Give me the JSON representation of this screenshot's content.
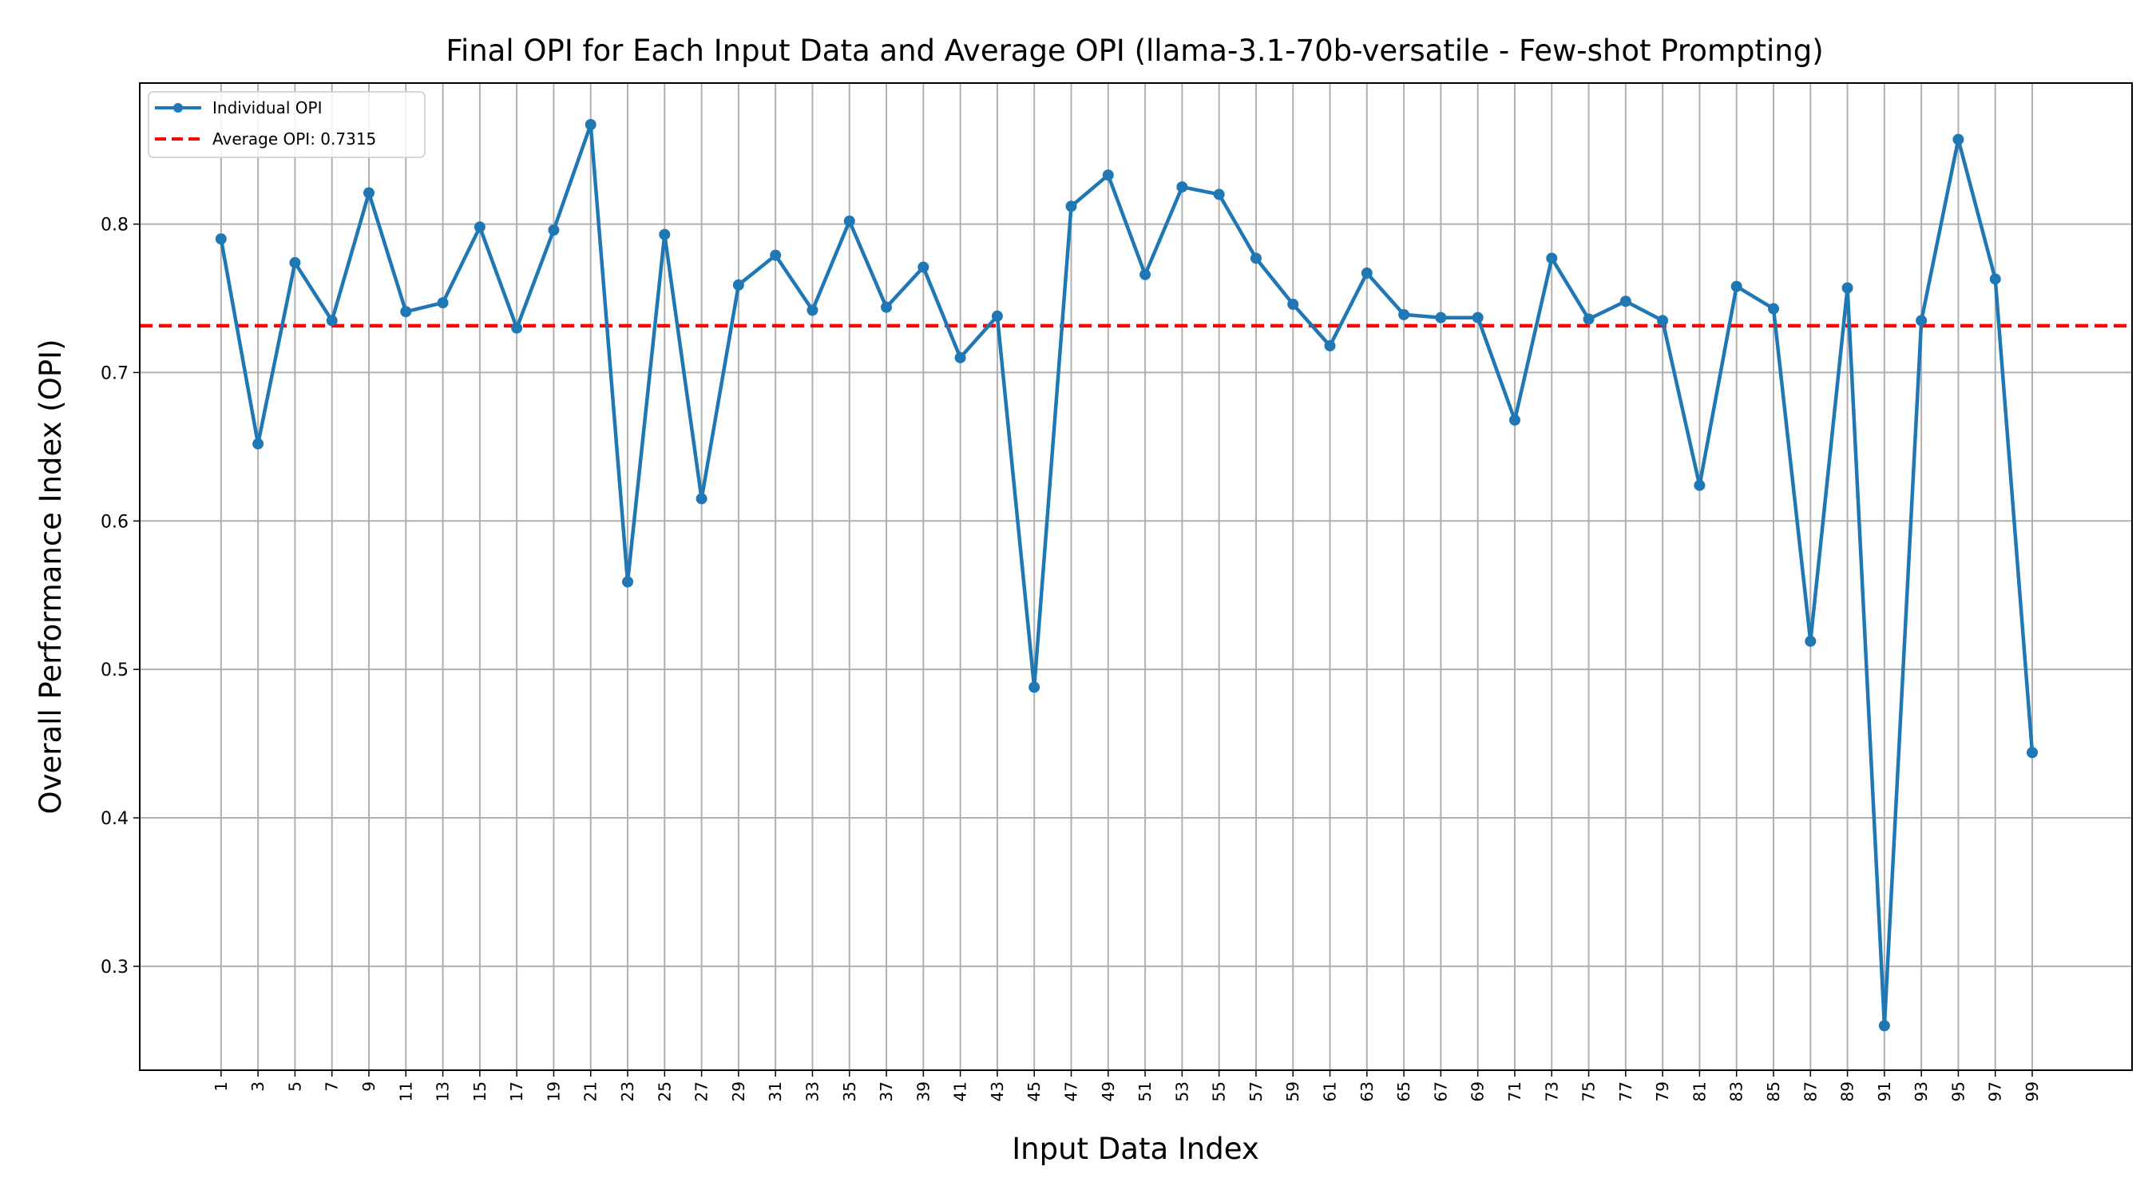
{
  "chart_data": {
    "type": "line",
    "title": "Final OPI for Each Input Data and Average OPI (llama-3.1-70b-versatile - Few-shot Prompting)",
    "xlabel": "Input Data Index",
    "ylabel": "Overall Performance Index (OPI)",
    "ylim": [
      0.23,
      0.895
    ],
    "xlim": [
      -3.4,
      104.4
    ],
    "grid": true,
    "legend_position": "top-left",
    "x": [
      1,
      3,
      5,
      7,
      9,
      11,
      13,
      15,
      17,
      19,
      21,
      23,
      25,
      27,
      29,
      31,
      33,
      35,
      37,
      39,
      41,
      43,
      45,
      47,
      49,
      51,
      53,
      55,
      57,
      59,
      61,
      63,
      65,
      67,
      69,
      71,
      73,
      75,
      77,
      79,
      81,
      83,
      85,
      87,
      89,
      91,
      93,
      95,
      97,
      99
    ],
    "x_tick_labels": [
      "1",
      "3",
      "5",
      "7",
      "9",
      "11",
      "13",
      "15",
      "17",
      "19",
      "21",
      "23",
      "25",
      "27",
      "29",
      "31",
      "33",
      "35",
      "37",
      "39",
      "41",
      "43",
      "45",
      "47",
      "49",
      "51",
      "53",
      "55",
      "57",
      "59",
      "61",
      "63",
      "65",
      "67",
      "69",
      "71",
      "73",
      "75",
      "77",
      "79",
      "81",
      "83",
      "85",
      "87",
      "89",
      "91",
      "93",
      "95",
      "97",
      "99"
    ],
    "y_ticks": [
      0.3,
      0.4,
      0.5,
      0.6,
      0.7,
      0.8
    ],
    "y_tick_labels": [
      "0.3",
      "0.4",
      "0.5",
      "0.6",
      "0.7",
      "0.8"
    ],
    "series": [
      {
        "name": "Individual OPI",
        "color": "#1f77b4",
        "style": "solid-line-with-circle-markers",
        "values": [
          0.79,
          0.652,
          0.774,
          0.735,
          0.821,
          0.741,
          0.747,
          0.798,
          0.73,
          0.796,
          0.867,
          0.559,
          0.793,
          0.615,
          0.759,
          0.779,
          0.742,
          0.802,
          0.744,
          0.771,
          0.71,
          0.738,
          0.488,
          0.812,
          0.833,
          0.766,
          0.825,
          0.82,
          0.777,
          0.746,
          0.718,
          0.767,
          0.739,
          0.737,
          0.737,
          0.668,
          0.777,
          0.736,
          0.748,
          0.735,
          0.624,
          0.758,
          0.743,
          0.519,
          0.757,
          0.26,
          0.735,
          0.857,
          0.763,
          0.444
        ]
      }
    ],
    "reference_line": {
      "name": "Average OPI: 0.7315",
      "value": 0.7315,
      "color": "#ff0000",
      "style": "dashed"
    }
  }
}
